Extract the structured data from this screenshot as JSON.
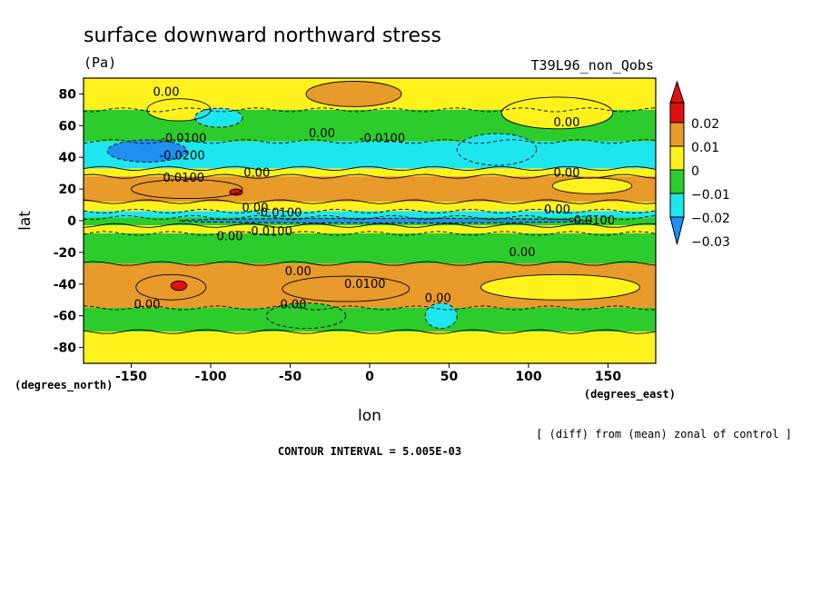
{
  "chart_data": {
    "type": "heatmap",
    "title": "surface downward northward stress",
    "units": "(Pa)",
    "experiment": "T39L96_non_Qobs",
    "xlabel": "lon",
    "ylabel": "lat",
    "x_unit_label": "(degrees_east)",
    "y_unit_label": "(degrees_north)",
    "xlim": [
      -180,
      180
    ],
    "ylim": [
      -90,
      90
    ],
    "x_ticks": [
      -150,
      -100,
      -50,
      0,
      50,
      100,
      150
    ],
    "y_ticks": [
      -80,
      -60,
      -40,
      -20,
      0,
      20,
      40,
      60,
      80
    ],
    "x_tick_labels": [
      "-150",
      "-100",
      "-50",
      "0",
      "50",
      "100",
      "150"
    ],
    "y_tick_labels": [
      "-80",
      "-60",
      "-40",
      "-20",
      "0",
      "20",
      "40",
      "60",
      "80"
    ],
    "colorbar": {
      "levels": [
        0.02,
        0.01,
        0,
        -0.01,
        -0.02,
        -0.03
      ],
      "labels": [
        "0.02",
        "0.01",
        "0",
        "−0.01",
        "−0.02",
        "−0.03"
      ],
      "colors": [
        "#e01010",
        "#e89a2a",
        "#fff21c",
        "#2ccc2c",
        "#1ee6ee",
        "#1f8ff0"
      ]
    },
    "contour_interval_text": "CONTOUR INTERVAL = 5.005E-03",
    "note": "[ (diff) from (mean) zonal of control ]",
    "bands": [
      {
        "lat": [
          70,
          90
        ],
        "value": 0.0
      },
      {
        "lat": [
          50,
          70
        ],
        "value": -0.005
      },
      {
        "lat": [
          33,
          50
        ],
        "value": -0.012
      },
      {
        "lat": [
          28,
          33
        ],
        "value": 0.002
      },
      {
        "lat": [
          12,
          28
        ],
        "value": 0.008
      },
      {
        "lat": [
          6,
          12
        ],
        "value": 0.003
      },
      {
        "lat": [
          2,
          6
        ],
        "value": -0.015
      },
      {
        "lat": [
          -3,
          2
        ],
        "value": -0.008
      },
      {
        "lat": [
          -8,
          -3
        ],
        "value": 0.004
      },
      {
        "lat": [
          -27,
          -8
        ],
        "value": -0.004
      },
      {
        "lat": [
          -55,
          -27
        ],
        "value": 0.006
      },
      {
        "lat": [
          -70,
          -55
        ],
        "value": -0.004
      },
      {
        "lat": [
          -90,
          -70
        ],
        "value": 0.003
      }
    ],
    "blobs": [
      {
        "lon": -10,
        "lat": 80,
        "rlon": 30,
        "rlat": 8,
        "value": 0.01
      },
      {
        "lon": -120,
        "lat": 70,
        "rlon": 20,
        "rlat": 7,
        "value": 0.003
      },
      {
        "lon": 118,
        "lat": 68,
        "rlon": 35,
        "rlat": 10,
        "value": 0.003
      },
      {
        "lon": -95,
        "lat": 65,
        "rlon": 15,
        "rlat": 6,
        "value": -0.012
      },
      {
        "lon": -140,
        "lat": 44,
        "rlon": 25,
        "rlat": 7,
        "value": -0.025
      },
      {
        "lon": 80,
        "lat": 45,
        "rlon": 25,
        "rlat": 10,
        "value": -0.016
      },
      {
        "lon": -115,
        "lat": 20,
        "rlon": 35,
        "rlat": 6,
        "value": 0.012
      },
      {
        "lon": -84,
        "lat": 18,
        "rlon": 4,
        "rlat": 2,
        "value": 0.022
      },
      {
        "lon": 140,
        "lat": 22,
        "rlon": 25,
        "rlat": 5,
        "value": 0.003
      },
      {
        "lon": 10,
        "lat": 0,
        "rlon": 130,
        "rlat": 1.5,
        "value": -0.03
      },
      {
        "lon": -125,
        "lat": -42,
        "rlon": 22,
        "rlat": 8,
        "value": 0.013
      },
      {
        "lon": -120,
        "lat": -41,
        "rlon": 5,
        "rlat": 3,
        "value": 0.022
      },
      {
        "lon": -15,
        "lat": -43,
        "rlon": 40,
        "rlat": 8,
        "value": 0.012
      },
      {
        "lon": 45,
        "lat": -60,
        "rlon": 10,
        "rlat": 8,
        "value": -0.017
      },
      {
        "lon": 120,
        "lat": -42,
        "rlon": 50,
        "rlat": 8,
        "value": 0.003
      },
      {
        "lon": -40,
        "lat": -60,
        "rlon": 25,
        "rlat": 8,
        "value": -0.003
      }
    ],
    "contour_labels": [
      {
        "text": "0.00",
        "lon": -128,
        "lat": 81
      },
      {
        "text": "0.00",
        "lon": 124,
        "lat": 62
      },
      {
        "text": "0.00",
        "lon": -30,
        "lat": 55
      },
      {
        "text": "-0.0100",
        "lon": 8,
        "lat": 52
      },
      {
        "text": "-0.0100",
        "lon": -117,
        "lat": 52
      },
      {
        "text": "-0.0200",
        "lon": -118,
        "lat": 41
      },
      {
        "text": "0.0100",
        "lon": -117,
        "lat": 27
      },
      {
        "text": "0.00",
        "lon": -71,
        "lat": 30
      },
      {
        "text": "0.00",
        "lon": 124,
        "lat": 30
      },
      {
        "text": "0.00",
        "lon": -72,
        "lat": 8
      },
      {
        "text": "-0.0100",
        "lon": -57,
        "lat": 5
      },
      {
        "text": "0.00",
        "lon": 118,
        "lat": 7
      },
      {
        "text": "-0.0100",
        "lon": 140,
        "lat": 0
      },
      {
        "text": "0.00",
        "lon": -88,
        "lat": -10
      },
      {
        "text": "-0.0100",
        "lon": -63,
        "lat": -7
      },
      {
        "text": "0.00",
        "lon": 96,
        "lat": -20
      },
      {
        "text": "0.00",
        "lon": -45,
        "lat": -32
      },
      {
        "text": "0.0100",
        "lon": -3,
        "lat": -40
      },
      {
        "text": "0.00",
        "lon": 43,
        "lat": -49
      },
      {
        "text": "0.00",
        "lon": -140,
        "lat": -53
      },
      {
        "text": "0.00",
        "lon": -48,
        "lat": -53
      }
    ]
  }
}
